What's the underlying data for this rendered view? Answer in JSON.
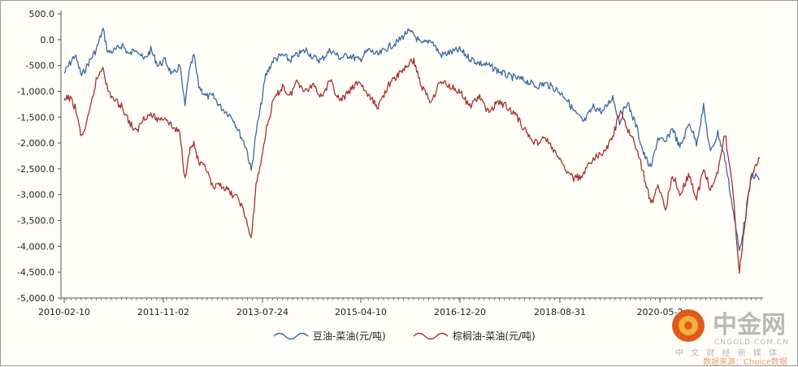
{
  "chart_data": {
    "type": "line",
    "title": "",
    "xlabel": "",
    "ylabel": "",
    "ylim": [
      -5000,
      500
    ],
    "y_ticks": [
      500,
      0,
      -500,
      -1000,
      -1500,
      -2000,
      -2500,
      -3000,
      -3500,
      -4000,
      -4500,
      -5000
    ],
    "y_tick_labels": [
      "500.0",
      "0.0",
      "-500.0",
      "-1,000.0",
      "-1,500.0",
      "-2,000.0",
      "-2,500.0",
      "-3,000.0",
      "-3,500.0",
      "-4,000.0",
      "-4,500.0",
      "-5,000.0"
    ],
    "x_range": [
      "2010-02-10",
      "2022-03-25"
    ],
    "x_tick_labels": [
      "2010-02-10",
      "2011-11-02",
      "2013-07-24",
      "2015-04-10",
      "2016-12-20",
      "2018-08-31",
      "2020-05-2"
    ],
    "grid": false,
    "legend_position": "bottom",
    "series": [
      {
        "name": "豆油-菜油(元/吨)",
        "color": "#3a6aa0",
        "points": [
          [
            "2010-02-10",
            -650
          ],
          [
            "2010-03-10",
            -500
          ],
          [
            "2010-04-20",
            -300
          ],
          [
            "2010-06-01",
            -700
          ],
          [
            "2010-07-15",
            -450
          ],
          [
            "2010-09-01",
            -200
          ],
          [
            "2010-10-15",
            200
          ],
          [
            "2010-11-15",
            -250
          ],
          [
            "2011-01-05",
            -200
          ],
          [
            "2011-02-15",
            -100
          ],
          [
            "2011-04-01",
            -300
          ],
          [
            "2011-05-15",
            -150
          ],
          [
            "2011-07-01",
            -400
          ],
          [
            "2011-08-15",
            -200
          ],
          [
            "2011-10-01",
            -500
          ],
          [
            "2011-11-15",
            -400
          ],
          [
            "2012-01-01",
            -700
          ],
          [
            "2012-02-15",
            -500
          ],
          [
            "2012-03-20",
            -1300
          ],
          [
            "2012-04-10",
            -700
          ],
          [
            "2012-05-15",
            -300
          ],
          [
            "2012-06-15",
            -900
          ],
          [
            "2012-08-01",
            -1100
          ],
          [
            "2012-09-15",
            -1100
          ],
          [
            "2012-11-01",
            -1300
          ],
          [
            "2013-01-15",
            -1500
          ],
          [
            "2013-03-01",
            -1800
          ],
          [
            "2013-04-15",
            -2100
          ],
          [
            "2013-05-15",
            -2550
          ],
          [
            "2013-06-15",
            -1800
          ],
          [
            "2013-07-15",
            -1300
          ],
          [
            "2013-08-15",
            -700
          ],
          [
            "2013-10-01",
            -400
          ],
          [
            "2013-12-01",
            -300
          ],
          [
            "2014-01-15",
            -400
          ],
          [
            "2014-03-01",
            -300
          ],
          [
            "2014-05-01",
            -200
          ],
          [
            "2014-06-15",
            -350
          ],
          [
            "2014-08-01",
            -400
          ],
          [
            "2014-10-01",
            -200
          ],
          [
            "2014-12-01",
            -350
          ],
          [
            "2015-02-01",
            -300
          ],
          [
            "2015-04-01",
            -400
          ],
          [
            "2015-06-01",
            -200
          ],
          [
            "2015-08-01",
            -300
          ],
          [
            "2015-10-01",
            -150
          ],
          [
            "2015-12-01",
            -50
          ],
          [
            "2016-02-01",
            150
          ],
          [
            "2016-03-15",
            100
          ],
          [
            "2016-05-01",
            -100
          ],
          [
            "2016-07-01",
            0
          ],
          [
            "2016-09-01",
            -300
          ],
          [
            "2016-11-01",
            -250
          ],
          [
            "2017-01-01",
            -200
          ],
          [
            "2017-03-01",
            -350
          ],
          [
            "2017-05-01",
            -450
          ],
          [
            "2017-07-01",
            -500
          ],
          [
            "2017-09-01",
            -600
          ],
          [
            "2017-11-01",
            -700
          ],
          [
            "2018-01-01",
            -750
          ],
          [
            "2018-03-01",
            -800
          ],
          [
            "2018-05-01",
            -900
          ],
          [
            "2018-07-01",
            -850
          ],
          [
            "2018-09-01",
            -950
          ],
          [
            "2018-11-01",
            -1100
          ],
          [
            "2019-01-01",
            -1400
          ],
          [
            "2019-03-01",
            -1600
          ],
          [
            "2019-05-01",
            -1300
          ],
          [
            "2019-07-01",
            -1400
          ],
          [
            "2019-09-01",
            -1100
          ],
          [
            "2019-10-15",
            -1600
          ],
          [
            "2019-12-01",
            -1200
          ],
          [
            "2020-02-01",
            -1700
          ],
          [
            "2020-03-15",
            -2200
          ],
          [
            "2020-05-01",
            -2500
          ],
          [
            "2020-06-15",
            -1900
          ],
          [
            "2020-08-01",
            -2000
          ],
          [
            "2020-09-15",
            -1700
          ],
          [
            "2020-11-01",
            -2100
          ],
          [
            "2021-01-01",
            -1600
          ],
          [
            "2021-02-15",
            -2000
          ],
          [
            "2021-04-01",
            -1300
          ],
          [
            "2021-05-15",
            -2200
          ],
          [
            "2021-07-01",
            -1800
          ],
          [
            "2021-08-15",
            -2300
          ],
          [
            "2021-10-01",
            -3200
          ],
          [
            "2021-11-15",
            -4100
          ],
          [
            "2022-01-01",
            -3300
          ],
          [
            "2022-02-01",
            -2600
          ],
          [
            "2022-03-25",
            -2700
          ]
        ]
      },
      {
        "name": "棕榈油-菜油(元/吨)",
        "color": "#a8302e",
        "points": [
          [
            "2010-02-10",
            -1200
          ],
          [
            "2010-03-10",
            -1100
          ],
          [
            "2010-04-20",
            -1300
          ],
          [
            "2010-06-01",
            -1900
          ],
          [
            "2010-07-15",
            -1500
          ],
          [
            "2010-09-01",
            -800
          ],
          [
            "2010-10-15",
            -500
          ],
          [
            "2010-11-15",
            -1000
          ],
          [
            "2011-01-05",
            -1200
          ],
          [
            "2011-02-15",
            -1300
          ],
          [
            "2011-04-01",
            -1600
          ],
          [
            "2011-05-15",
            -1800
          ],
          [
            "2011-07-01",
            -1500
          ],
          [
            "2011-08-15",
            -1450
          ],
          [
            "2011-10-01",
            -1550
          ],
          [
            "2011-11-15",
            -1500
          ],
          [
            "2012-01-01",
            -1700
          ],
          [
            "2012-02-15",
            -1800
          ],
          [
            "2012-03-20",
            -2700
          ],
          [
            "2012-04-10",
            -2200
          ],
          [
            "2012-05-15",
            -2000
          ],
          [
            "2012-06-15",
            -2400
          ],
          [
            "2012-08-01",
            -2500
          ],
          [
            "2012-09-15",
            -2900
          ],
          [
            "2012-11-01",
            -2800
          ],
          [
            "2013-01-15",
            -3000
          ],
          [
            "2013-03-01",
            -3100
          ],
          [
            "2013-04-15",
            -3500
          ],
          [
            "2013-05-15",
            -3900
          ],
          [
            "2013-06-15",
            -2800
          ],
          [
            "2013-07-15",
            -2400
          ],
          [
            "2013-08-15",
            -1800
          ],
          [
            "2013-10-01",
            -1200
          ],
          [
            "2013-12-01",
            -900
          ],
          [
            "2014-01-15",
            -1100
          ],
          [
            "2014-03-01",
            -800
          ],
          [
            "2014-05-01",
            -1000
          ],
          [
            "2014-06-15",
            -850
          ],
          [
            "2014-08-01",
            -1100
          ],
          [
            "2014-10-01",
            -800
          ],
          [
            "2014-12-01",
            -1200
          ],
          [
            "2015-02-01",
            -1000
          ],
          [
            "2015-04-01",
            -800
          ],
          [
            "2015-06-01",
            -1100
          ],
          [
            "2015-08-01",
            -1300
          ],
          [
            "2015-10-01",
            -900
          ],
          [
            "2015-12-01",
            -700
          ],
          [
            "2016-02-01",
            -500
          ],
          [
            "2016-03-15",
            -400
          ],
          [
            "2016-05-01",
            -900
          ],
          [
            "2016-07-01",
            -1200
          ],
          [
            "2016-09-01",
            -800
          ],
          [
            "2016-11-01",
            -900
          ],
          [
            "2017-01-01",
            -1000
          ],
          [
            "2017-03-01",
            -1300
          ],
          [
            "2017-05-01",
            -1100
          ],
          [
            "2017-07-01",
            -1400
          ],
          [
            "2017-09-01",
            -1200
          ],
          [
            "2017-11-01",
            -1300
          ],
          [
            "2018-01-01",
            -1500
          ],
          [
            "2018-03-01",
            -1800
          ],
          [
            "2018-05-01",
            -2000
          ],
          [
            "2018-07-01",
            -1900
          ],
          [
            "2018-09-01",
            -2200
          ],
          [
            "2018-11-01",
            -2500
          ],
          [
            "2019-01-01",
            -2700
          ],
          [
            "2019-03-01",
            -2600
          ],
          [
            "2019-05-01",
            -2300
          ],
          [
            "2019-07-01",
            -2200
          ],
          [
            "2019-09-01",
            -1900
          ],
          [
            "2019-10-15",
            -1400
          ],
          [
            "2019-12-01",
            -1700
          ],
          [
            "2020-02-01",
            -2100
          ],
          [
            "2020-03-15",
            -2600
          ],
          [
            "2020-05-01",
            -3200
          ],
          [
            "2020-06-15",
            -2800
          ],
          [
            "2020-08-01",
            -3300
          ],
          [
            "2020-09-15",
            -2600
          ],
          [
            "2020-11-01",
            -3000
          ],
          [
            "2021-01-01",
            -2600
          ],
          [
            "2021-02-15",
            -3100
          ],
          [
            "2021-04-01",
            -2500
          ],
          [
            "2021-05-15",
            -2900
          ],
          [
            "2021-07-01",
            -2600
          ],
          [
            "2021-08-15",
            -1800
          ],
          [
            "2021-10-01",
            -2800
          ],
          [
            "2021-11-15",
            -4500
          ],
          [
            "2022-01-01",
            -3200
          ],
          [
            "2022-02-01",
            -2600
          ],
          [
            "2022-03-25",
            -2300
          ]
        ]
      }
    ]
  },
  "watermark": {
    "brand": "中金网",
    "domain": "CNGOLD.COM.CN",
    "tagline": "中 文 财 经 新 媒 体",
    "source": "数据来源：Choice数据",
    "logo_color": "#e05a1c"
  }
}
